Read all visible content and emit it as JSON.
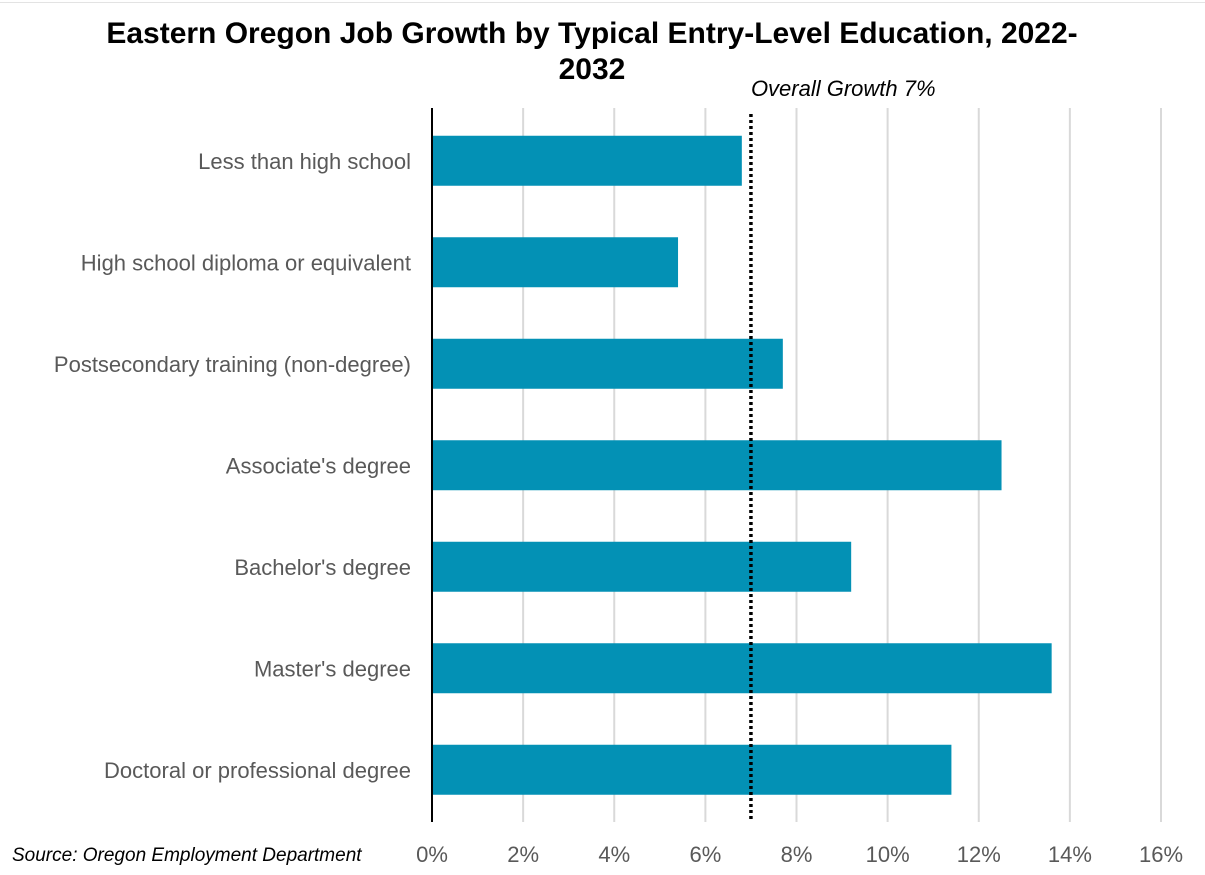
{
  "chart_data": {
    "type": "bar",
    "orientation": "horizontal",
    "title": "Eastern Oregon Job Growth by Typical Entry-Level Education, 2022-2032",
    "categories": [
      "Less than high school",
      "High school diploma or equivalent",
      "Postsecondary training (non-degree)",
      "Associate's degree",
      "Bachelor's degree",
      "Master's degree",
      "Doctoral or professional degree"
    ],
    "values": [
      6.8,
      5.4,
      7.7,
      12.5,
      9.2,
      13.6,
      11.4
    ],
    "value_unit": "%",
    "xlim": [
      0,
      16
    ],
    "x_ticks": [
      0,
      2,
      4,
      6,
      8,
      10,
      12,
      14,
      16
    ],
    "x_tick_labels": [
      "0%",
      "2%",
      "4%",
      "6%",
      "8%",
      "10%",
      "12%",
      "14%",
      "16%"
    ],
    "grid": "vertical",
    "bar_color": "#0391b5",
    "reference_line": {
      "value": 7,
      "label": "Overall Growth 7%",
      "style": "dotted"
    }
  },
  "source": "Source: Oregon Employment Department"
}
